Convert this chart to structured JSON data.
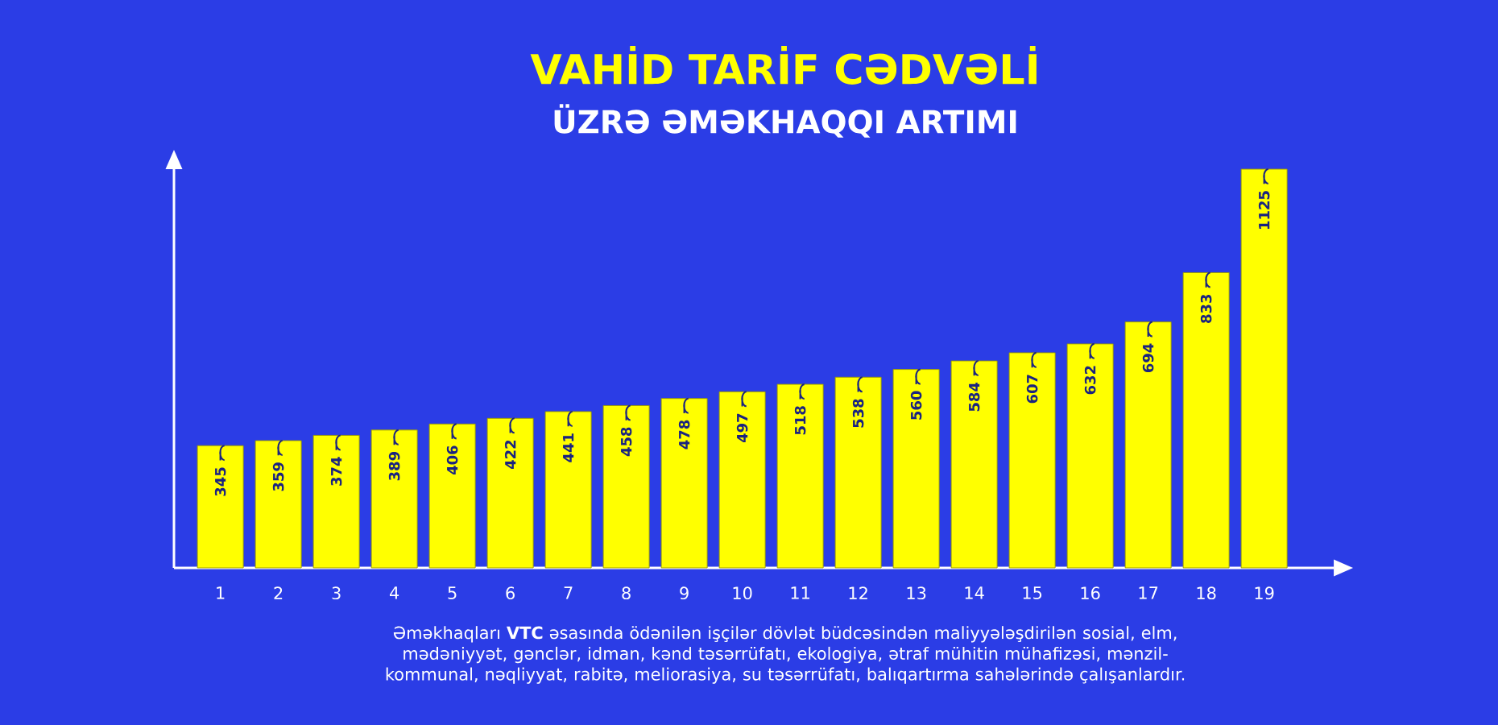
{
  "chart_data": {
    "type": "bar",
    "title": "VAHİD TARİF CƏDVƏLİ",
    "subtitle": "ÜZRƏ ƏMƏKHAQQI ARTIMI",
    "categories": [
      "1",
      "2",
      "3",
      "4",
      "5",
      "6",
      "7",
      "8",
      "9",
      "10",
      "11",
      "12",
      "13",
      "14",
      "15",
      "16",
      "17",
      "18",
      "19"
    ],
    "values": [
      345,
      359,
      374,
      389,
      406,
      422,
      441,
      458,
      478,
      497,
      518,
      538,
      560,
      584,
      607,
      632,
      694,
      833,
      1125
    ],
    "data_labels": true,
    "color": "#ffff00",
    "tick_labels": "x",
    "annotations": [
      "Əməkhaqları **VTC** əsasında ödənilən işçilər dövlət büdcəsindən maliyyələşdirilən sosial, elm, mədəniyyət, gənclər, idman, kənd təsərrüfatı, ekologiya, ətraf mühitin mühafizəsi, mənzil-kommunal, nəqliyyat, rabitə, meliorasiya, su təsərrüfatı, balıqartırma sahələrində çalışanlardır."
    ]
  }
}
